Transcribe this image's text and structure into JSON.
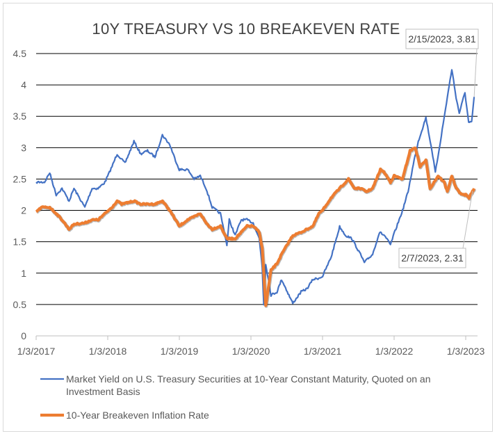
{
  "chart_data": {
    "type": "line",
    "title": "10Y TREASURY VS 10 BREAKEVEN RATE",
    "ylim": [
      0,
      4.5
    ],
    "yticks": [
      "0",
      "0.5",
      "1",
      "1.5",
      "2",
      "2.5",
      "3",
      "3.5",
      "4",
      "4.5"
    ],
    "xticks": [
      "1/3/2017",
      "1/3/2018",
      "1/3/2019",
      "1/3/2020",
      "1/3/2021",
      "1/3/2022",
      "1/3/2023"
    ],
    "grid": "horizontal",
    "legend_position": "bottom",
    "series": [
      {
        "name": "Market Yield on U.S. Treasury Securities at 10-Year Constant Maturity, Quoted on an Investment Basis",
        "color": "#4472C4",
        "points": [
          [
            "2017-01-03",
            2.45
          ],
          [
            "2017-02-15",
            2.45
          ],
          [
            "2017-03-13",
            2.6
          ],
          [
            "2017-04-15",
            2.25
          ],
          [
            "2017-05-15",
            2.35
          ],
          [
            "2017-06-20",
            2.15
          ],
          [
            "2017-07-15",
            2.35
          ],
          [
            "2017-09-08",
            2.05
          ],
          [
            "2017-10-15",
            2.35
          ],
          [
            "2017-11-15",
            2.35
          ],
          [
            "2017-12-20",
            2.45
          ],
          [
            "2018-01-25",
            2.7
          ],
          [
            "2018-02-20",
            2.9
          ],
          [
            "2018-04-01",
            2.75
          ],
          [
            "2018-05-17",
            3.1
          ],
          [
            "2018-06-20",
            2.9
          ],
          [
            "2018-07-25",
            2.95
          ],
          [
            "2018-09-01",
            2.85
          ],
          [
            "2018-10-09",
            3.2
          ],
          [
            "2018-11-15",
            3.05
          ],
          [
            "2018-12-15",
            2.8
          ],
          [
            "2019-01-03",
            2.65
          ],
          [
            "2019-02-15",
            2.65
          ],
          [
            "2019-03-20",
            2.5
          ],
          [
            "2019-04-20",
            2.55
          ],
          [
            "2019-05-20",
            2.35
          ],
          [
            "2019-06-20",
            2.05
          ],
          [
            "2019-08-01",
            1.95
          ],
          [
            "2019-09-03",
            1.45
          ],
          [
            "2019-09-15",
            1.85
          ],
          [
            "2019-10-15",
            1.6
          ],
          [
            "2019-11-15",
            1.85
          ],
          [
            "2019-12-15",
            1.85
          ],
          [
            "2020-01-15",
            1.8
          ],
          [
            "2020-02-15",
            1.55
          ],
          [
            "2020-03-01",
            1.1
          ],
          [
            "2020-03-09",
            0.5
          ],
          [
            "2020-03-19",
            1.15
          ],
          [
            "2020-04-15",
            0.65
          ],
          [
            "2020-05-15",
            0.7
          ],
          [
            "2020-06-08",
            0.9
          ],
          [
            "2020-07-15",
            0.65
          ],
          [
            "2020-08-04",
            0.52
          ],
          [
            "2020-09-15",
            0.7
          ],
          [
            "2020-10-15",
            0.75
          ],
          [
            "2020-11-15",
            0.9
          ],
          [
            "2020-12-15",
            0.92
          ],
          [
            "2021-01-03",
            0.95
          ],
          [
            "2021-02-15",
            1.25
          ],
          [
            "2021-03-31",
            1.74
          ],
          [
            "2021-05-01",
            1.6
          ],
          [
            "2021-06-01",
            1.55
          ],
          [
            "2021-07-15",
            1.3
          ],
          [
            "2021-08-04",
            1.17
          ],
          [
            "2021-09-15",
            1.3
          ],
          [
            "2021-10-20",
            1.65
          ],
          [
            "2021-11-15",
            1.6
          ],
          [
            "2021-12-15",
            1.45
          ],
          [
            "2022-01-03",
            1.63
          ],
          [
            "2022-02-15",
            2.0
          ],
          [
            "2022-03-15",
            2.3
          ],
          [
            "2022-04-15",
            2.8
          ],
          [
            "2022-05-06",
            3.1
          ],
          [
            "2022-06-14",
            3.48
          ],
          [
            "2022-07-15",
            2.95
          ],
          [
            "2022-08-01",
            2.6
          ],
          [
            "2022-09-01",
            3.2
          ],
          [
            "2022-10-01",
            3.8
          ],
          [
            "2022-10-24",
            4.25
          ],
          [
            "2022-11-15",
            3.8
          ],
          [
            "2022-12-01",
            3.55
          ],
          [
            "2022-12-30",
            3.88
          ],
          [
            "2023-01-18",
            3.4
          ],
          [
            "2023-02-02",
            3.4
          ],
          [
            "2023-02-15",
            3.81
          ]
        ]
      },
      {
        "name": "10-Year Breakeven Inflation Rate",
        "color": "#ED7D31",
        "points": [
          [
            "2017-01-03",
            1.98
          ],
          [
            "2017-02-01",
            2.05
          ],
          [
            "2017-03-13",
            2.05
          ],
          [
            "2017-04-15",
            1.95
          ],
          [
            "2017-05-15",
            1.85
          ],
          [
            "2017-06-20",
            1.7
          ],
          [
            "2017-07-15",
            1.78
          ],
          [
            "2017-09-08",
            1.8
          ],
          [
            "2017-10-15",
            1.85
          ],
          [
            "2017-11-15",
            1.85
          ],
          [
            "2017-12-20",
            1.95
          ],
          [
            "2018-01-25",
            2.05
          ],
          [
            "2018-02-20",
            2.15
          ],
          [
            "2018-03-15",
            2.1
          ],
          [
            "2018-05-17",
            2.15
          ],
          [
            "2018-06-20",
            2.1
          ],
          [
            "2018-07-25",
            2.1
          ],
          [
            "2018-09-01",
            2.1
          ],
          [
            "2018-10-09",
            2.15
          ],
          [
            "2018-11-15",
            2.0
          ],
          [
            "2018-12-15",
            1.85
          ],
          [
            "2019-01-03",
            1.75
          ],
          [
            "2019-02-15",
            1.85
          ],
          [
            "2019-03-20",
            1.9
          ],
          [
            "2019-04-20",
            1.95
          ],
          [
            "2019-05-20",
            1.8
          ],
          [
            "2019-06-20",
            1.7
          ],
          [
            "2019-08-01",
            1.75
          ],
          [
            "2019-09-03",
            1.55
          ],
          [
            "2019-10-15",
            1.55
          ],
          [
            "2019-11-15",
            1.65
          ],
          [
            "2019-12-15",
            1.75
          ],
          [
            "2020-01-15",
            1.75
          ],
          [
            "2020-02-15",
            1.65
          ],
          [
            "2020-03-01",
            1.4
          ],
          [
            "2020-03-19",
            0.48
          ],
          [
            "2020-04-15",
            1.05
          ],
          [
            "2020-05-15",
            1.15
          ],
          [
            "2020-06-08",
            1.3
          ],
          [
            "2020-07-15",
            1.5
          ],
          [
            "2020-08-04",
            1.6
          ],
          [
            "2020-09-15",
            1.65
          ],
          [
            "2020-10-15",
            1.7
          ],
          [
            "2020-11-15",
            1.75
          ],
          [
            "2020-12-15",
            1.95
          ],
          [
            "2021-01-03",
            2.0
          ],
          [
            "2021-02-15",
            2.2
          ],
          [
            "2021-03-31",
            2.35
          ],
          [
            "2021-05-15",
            2.5
          ],
          [
            "2021-06-15",
            2.35
          ],
          [
            "2021-07-15",
            2.35
          ],
          [
            "2021-08-15",
            2.3
          ],
          [
            "2021-09-15",
            2.35
          ],
          [
            "2021-10-25",
            2.65
          ],
          [
            "2021-11-15",
            2.6
          ],
          [
            "2021-12-15",
            2.45
          ],
          [
            "2022-01-03",
            2.55
          ],
          [
            "2022-02-15",
            2.5
          ],
          [
            "2022-03-25",
            2.95
          ],
          [
            "2022-04-21",
            3.0
          ],
          [
            "2022-05-15",
            2.7
          ],
          [
            "2022-06-14",
            2.8
          ],
          [
            "2022-07-05",
            2.35
          ],
          [
            "2022-08-15",
            2.55
          ],
          [
            "2022-09-15",
            2.45
          ],
          [
            "2022-10-01",
            2.3
          ],
          [
            "2022-10-24",
            2.55
          ],
          [
            "2022-11-15",
            2.35
          ],
          [
            "2022-12-15",
            2.25
          ],
          [
            "2023-01-03",
            2.25
          ],
          [
            "2023-01-20",
            2.2
          ],
          [
            "2023-02-07",
            2.31
          ],
          [
            "2023-02-15",
            2.35
          ]
        ]
      }
    ],
    "annotations": [
      {
        "label": "2/15/2023, 3.81",
        "x": "2023-02-15",
        "y": 3.81
      },
      {
        "label": "2/7/2023, 2.31",
        "x": "2023-02-07",
        "y": 2.31
      }
    ]
  }
}
